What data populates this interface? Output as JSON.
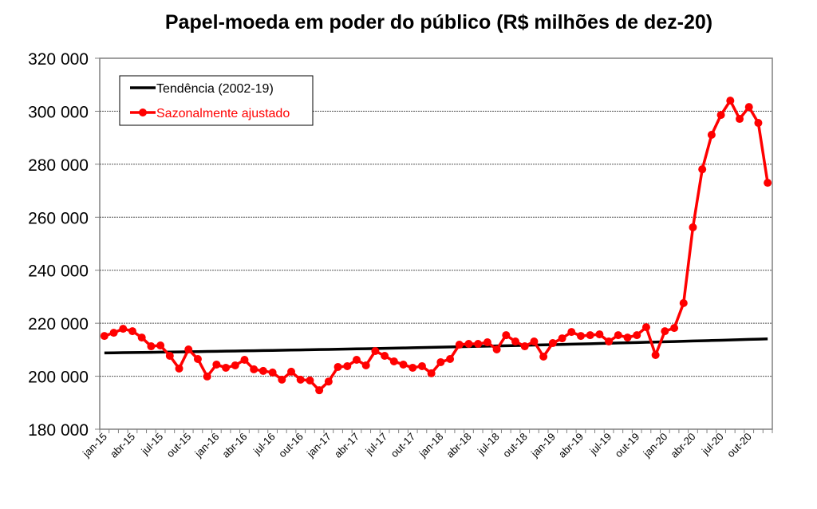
{
  "chart_data": {
    "type": "line",
    "title": "Papel-moeda em poder do público (R$ milhões de dez-20)",
    "xlabel": "",
    "ylabel": "",
    "ylim": [
      180000,
      320000
    ],
    "yticks": [
      "180 000",
      "200 000",
      "220 000",
      "240 000",
      "260 000",
      "280 000",
      "300 000",
      "320 000"
    ],
    "ytick_values": [
      180000,
      200000,
      220000,
      240000,
      260000,
      280000,
      300000,
      320000
    ],
    "grid": true,
    "legend_position": "top-left",
    "x": [
      "jan-15",
      "fev-15",
      "mar-15",
      "abr-15",
      "mai-15",
      "jun-15",
      "jul-15",
      "ago-15",
      "set-15",
      "out-15",
      "nov-15",
      "dez-15",
      "jan-16",
      "fev-16",
      "mar-16",
      "abr-16",
      "mai-16",
      "jun-16",
      "jul-16",
      "ago-16",
      "set-16",
      "out-16",
      "nov-16",
      "dez-16",
      "jan-17",
      "fev-17",
      "mar-17",
      "abr-17",
      "mai-17",
      "jun-17",
      "jul-17",
      "ago-17",
      "set-17",
      "out-17",
      "nov-17",
      "dez-17",
      "jan-18",
      "fev-18",
      "mar-18",
      "abr-18",
      "mai-18",
      "jun-18",
      "jul-18",
      "ago-18",
      "set-18",
      "out-18",
      "nov-18",
      "dez-18",
      "jan-19",
      "fev-19",
      "mar-19",
      "abr-19",
      "mai-19",
      "jun-19",
      "jul-19",
      "ago-19",
      "set-19",
      "out-19",
      "nov-19",
      "dez-19",
      "jan-20",
      "fev-20",
      "mar-20",
      "abr-20",
      "mai-20",
      "jun-20",
      "jul-20",
      "ago-20",
      "set-20",
      "out-20",
      "nov-20",
      "dez-20"
    ],
    "xtick_labels": [
      "jan-15",
      "abr-15",
      "jul-15",
      "out-15",
      "jan-16",
      "abr-16",
      "jul-16",
      "out-16",
      "jan-17",
      "abr-17",
      "jul-17",
      "out-17",
      "jan-18",
      "abr-18",
      "jul-18",
      "out-18",
      "jan-19",
      "abr-19",
      "jul-19",
      "out-19",
      "jan-20",
      "abr-20",
      "jul-20",
      "out-20"
    ],
    "series": [
      {
        "name": "Tendência (2002-19)",
        "color": "#000000",
        "start": 208800,
        "end": 214100
      },
      {
        "name": "Sazonalmente ajustado",
        "color": "#ff0000",
        "values": [
          215200,
          216400,
          217900,
          217000,
          214600,
          211300,
          211600,
          207700,
          202900,
          210100,
          206500,
          199900,
          204400,
          203200,
          204100,
          206200,
          202600,
          202000,
          201400,
          198700,
          201700,
          198700,
          198400,
          194700,
          198000,
          203500,
          203800,
          206200,
          204100,
          209500,
          207700,
          205600,
          204400,
          203200,
          203800,
          201100,
          205300,
          206500,
          211900,
          212200,
          212200,
          212800,
          210100,
          215500,
          213100,
          211300,
          213100,
          207400,
          212500,
          214300,
          216700,
          215200,
          215500,
          215800,
          213100,
          215500,
          214600,
          215500,
          218500,
          208000,
          217000,
          218200,
          227600,
          256200,
          278100,
          291100,
          298600,
          304000,
          297100,
          301600,
          295600,
          273000
        ]
      }
    ]
  }
}
